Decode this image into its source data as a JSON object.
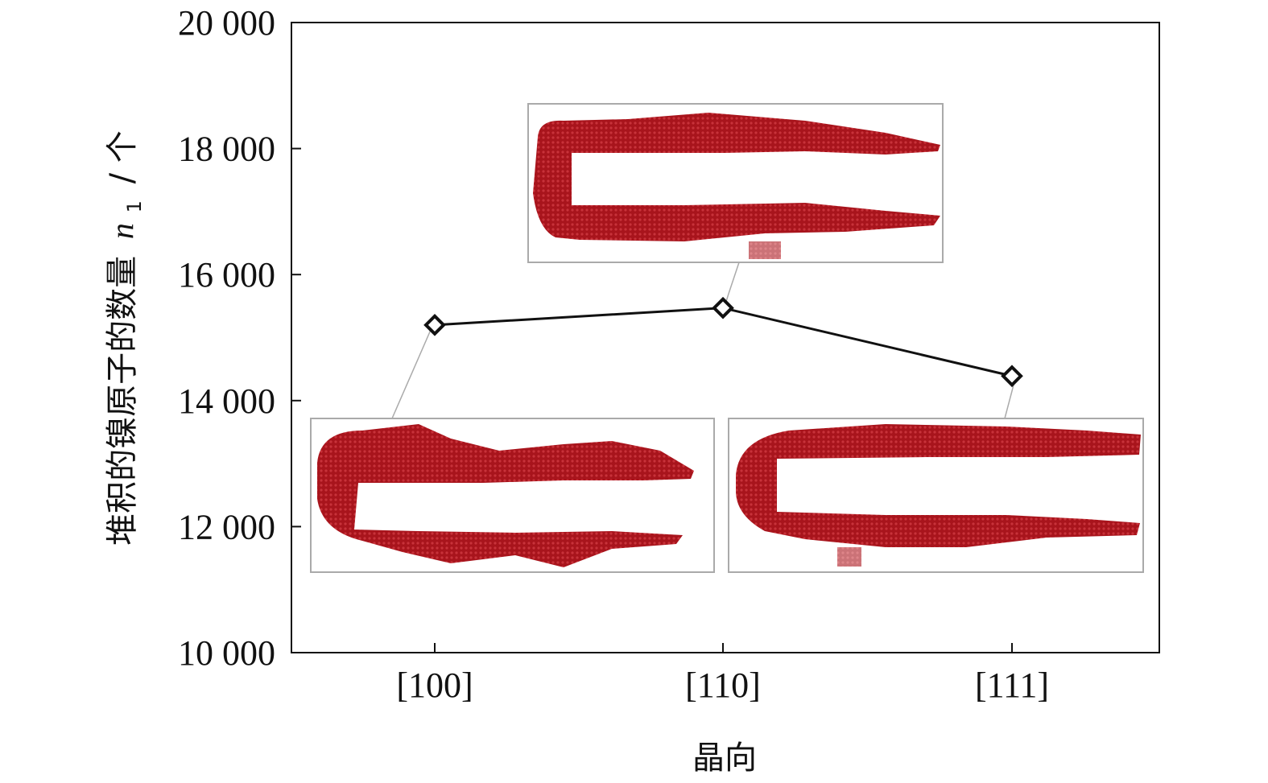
{
  "chart_data": {
    "type": "line",
    "xlabel": "晶向",
    "ylabel": "堆积的镍原子的数量",
    "ylabel_var": "n",
    "ylabel_sub": "1",
    "ylabel_unit": "/ 个",
    "categories": [
      "[100]",
      "[110]",
      "[111]"
    ],
    "series": [
      {
        "values": [
          15200,
          15470,
          14390
        ]
      }
    ],
    "ylim": [
      10000,
      20000
    ],
    "yticks": [
      10000,
      12000,
      14000,
      16000,
      18000,
      20000
    ],
    "ytick_labels": [
      "10 000",
      "12 000",
      "14 000",
      "16 000",
      "18 000",
      "20 000"
    ],
    "grid": false,
    "line_color": "#111111",
    "marker": "diamond-open",
    "inset_color": "#b5121b",
    "inset_border_color": "#aaaaaa"
  }
}
